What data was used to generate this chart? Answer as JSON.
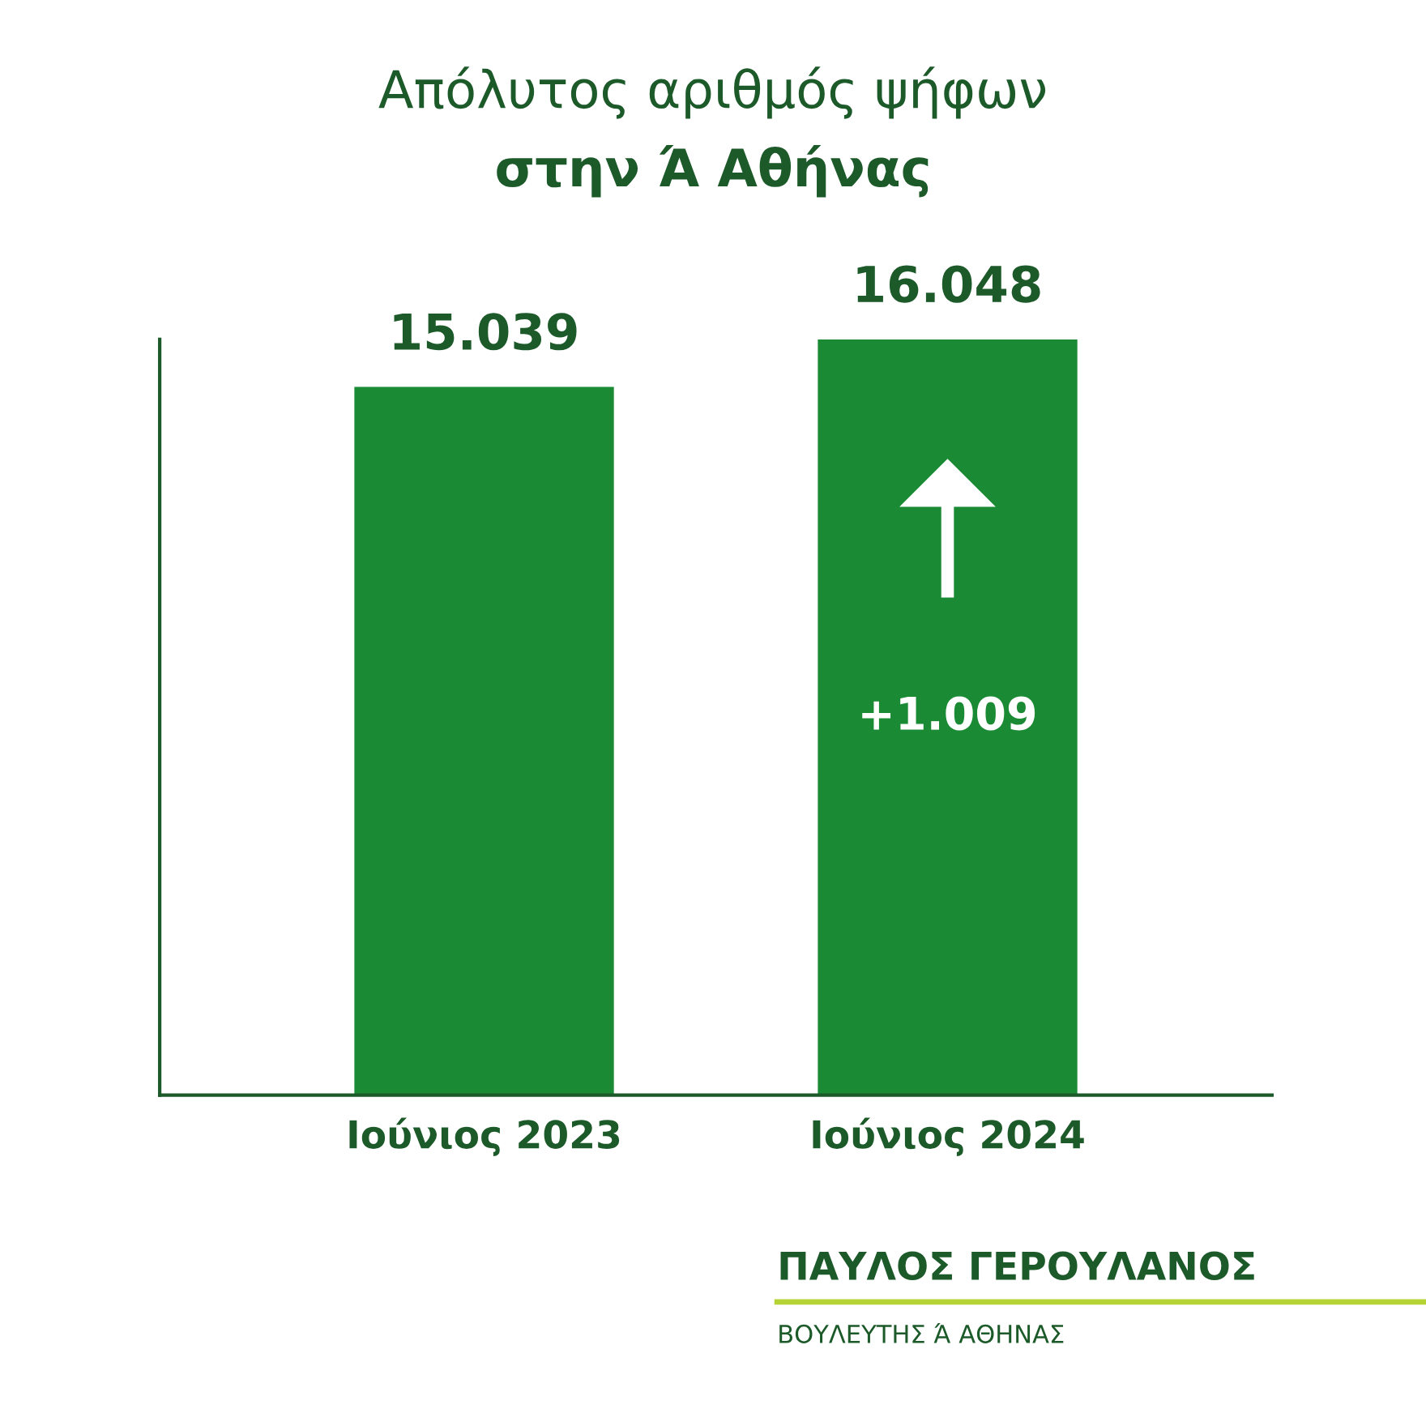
{
  "chart_data": {
    "type": "bar",
    "title": "Απόλυτος αριθμός ψήφων",
    "subtitle": "στην Ά Αθήνας",
    "categories": [
      "Ιούνιος 2023",
      "Ιούνιος 2024"
    ],
    "values": [
      15039,
      16048
    ],
    "value_labels": [
      "15.039",
      "16.048"
    ],
    "color": "#1b8a34",
    "tick_labels": "x",
    "grid": false,
    "legend": false,
    "annotations": [
      "+1.009",
      "ΠΑΥΛΟΣ ΓΕΡΟΥΛΑΝΟΣ",
      "ΒΟΥΛΕΥΤΗΣ Ά ΑΘΗΝΑΣ"
    ]
  }
}
